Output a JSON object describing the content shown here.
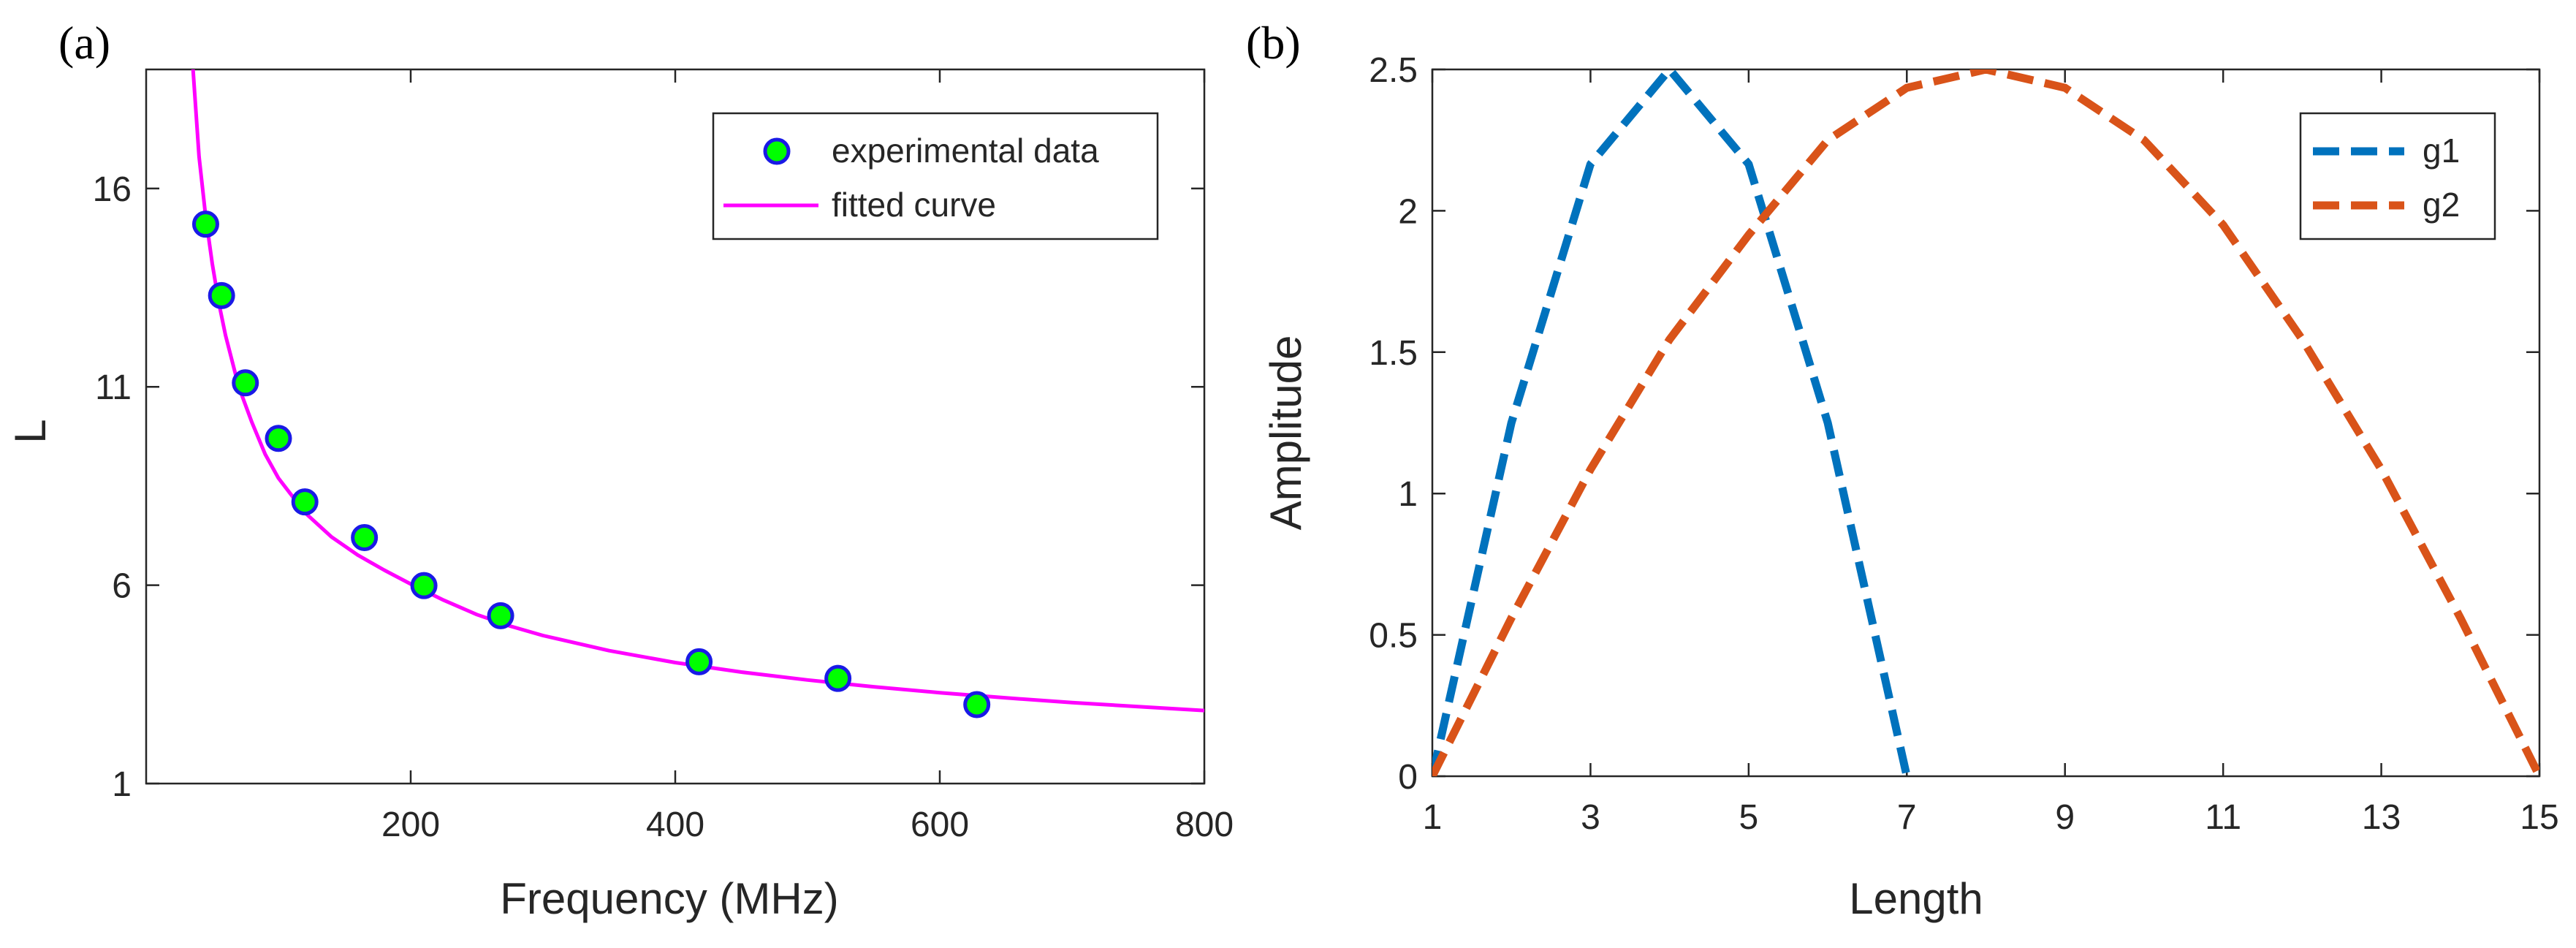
{
  "chart_data": [
    {
      "panel_label": "(a)",
      "type": "scatter",
      "title": "",
      "xlabel": "Frequency (MHz)",
      "ylabel": "L",
      "xlim": [
        0,
        800
      ],
      "ylim": [
        1,
        19
      ],
      "xticks": [
        200,
        400,
        600,
        800
      ],
      "xtick_labels": [
        "200",
        "400",
        "600",
        "800"
      ],
      "yticks": [
        1,
        6,
        11,
        16
      ],
      "ytick_labels": [
        "1",
        "6",
        "11",
        "16"
      ],
      "grid": false,
      "legend_position": "top-right",
      "series": [
        {
          "name": "experimental data",
          "kind": "markers",
          "marker_fill": "#00ff00",
          "marker_edge": "#1a1ae6",
          "x": [
            45,
            57,
            75,
            100,
            120,
            165,
            210,
            268,
            418,
            523,
            628
          ],
          "y": [
            15.1,
            13.3,
            11.1,
            9.7,
            8.1,
            7.2,
            5.99,
            5.23,
            4.07,
            3.65,
            2.99
          ]
        },
        {
          "name": "fitted curve",
          "kind": "line",
          "color": "#ff00ff",
          "x": [
            35,
            40,
            45,
            50,
            55,
            60,
            70,
            80,
            90,
            100,
            120,
            140,
            160,
            180,
            200,
            225,
            250,
            275,
            300,
            350,
            400,
            450,
            500,
            550,
            600,
            650,
            700,
            750,
            800
          ],
          "y": [
            19.2,
            16.8,
            15.3,
            14.1,
            13.1,
            12.3,
            11.0,
            10.1,
            9.3,
            8.7,
            7.83,
            7.22,
            6.76,
            6.38,
            6.03,
            5.62,
            5.26,
            4.97,
            4.73,
            4.35,
            4.05,
            3.81,
            3.61,
            3.44,
            3.29,
            3.16,
            3.04,
            2.94,
            2.84
          ]
        }
      ]
    },
    {
      "panel_label": "(b)",
      "type": "line",
      "title": "",
      "xlabel": "Length",
      "ylabel": "Amplitude",
      "xlim": [
        1,
        15
      ],
      "ylim": [
        0,
        2.5
      ],
      "xticks": [
        1,
        3,
        5,
        7,
        9,
        11,
        13,
        15
      ],
      "xtick_labels": [
        "1",
        "3",
        "5",
        "7",
        "9",
        "11",
        "13",
        "15"
      ],
      "yticks": [
        0,
        0.5,
        1,
        1.5,
        2,
        2.5
      ],
      "ytick_labels": [
        "0",
        "0.5",
        "1",
        "1.5",
        "2",
        "2.5"
      ],
      "grid": false,
      "legend_position": "top-right",
      "series": [
        {
          "name": "g1",
          "kind": "dashed-line",
          "color": "#0072bd",
          "x": [
            1,
            2,
            3,
            4,
            5,
            6,
            7
          ],
          "y": [
            0,
            1.25,
            2.165,
            2.5,
            2.165,
            1.25,
            0
          ]
        },
        {
          "name": "g2",
          "kind": "dashed-line",
          "color": "#d95319",
          "x": [
            1,
            2,
            3,
            4,
            5,
            6,
            7,
            8,
            9,
            10,
            11,
            12,
            13,
            14,
            15
          ],
          "y": [
            0,
            0.56,
            1.085,
            1.545,
            1.915,
            2.25,
            2.435,
            2.5,
            2.435,
            2.25,
            1.95,
            1.545,
            1.085,
            0.56,
            0
          ]
        }
      ]
    }
  ]
}
